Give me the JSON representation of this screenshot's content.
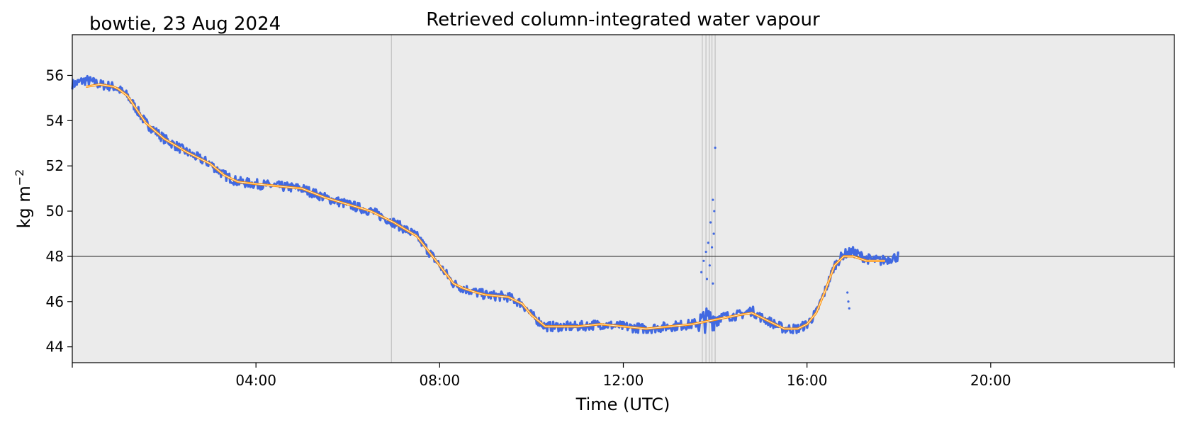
{
  "chart_data": {
    "type": "line",
    "title": "Retrieved column-integrated water vapour",
    "subtitle": "bowtie, 23 Aug 2024",
    "xlabel": "Time (UTC)",
    "ylabel_main": "kg m",
    "ylabel_exp": "−2",
    "xlim_hours": [
      0,
      24
    ],
    "ylim": [
      43.3,
      57.8
    ],
    "x_ticks": [
      {
        "hour": 0,
        "label": ""
      },
      {
        "hour": 4,
        "label": "04:00"
      },
      {
        "hour": 8,
        "label": "08:00"
      },
      {
        "hour": 12,
        "label": "12:00"
      },
      {
        "hour": 16,
        "label": "16:00"
      },
      {
        "hour": 20,
        "label": "20:00"
      },
      {
        "hour": 24,
        "label": ""
      }
    ],
    "y_ticks": [
      44,
      46,
      48,
      50,
      52,
      54,
      56
    ],
    "reference_line_y": 48,
    "vertical_markers_hours": [
      6.95,
      13.72,
      13.8,
      13.87,
      13.93,
      14.0
    ],
    "grid": false,
    "background_color": "#ebebeb",
    "series": [
      {
        "role": "raw",
        "color": "#4169e1",
        "noise": 0.22,
        "x": [
          0.0,
          0.3,
          0.6,
          0.9,
          1.0,
          1.2,
          1.4,
          1.6,
          2.0,
          2.5,
          3.0,
          3.3,
          3.6,
          4.0,
          4.5,
          5.0,
          5.5,
          6.0,
          6.5,
          7.0,
          7.5,
          8.0,
          8.3,
          8.5,
          8.8,
          9.0,
          9.5,
          9.8,
          10.0,
          10.3,
          10.5,
          11.0,
          11.5,
          12.0,
          12.5,
          13.0,
          13.5,
          14.0,
          14.5,
          14.8,
          15.0,
          15.3,
          15.5,
          15.8,
          16.0,
          16.2,
          16.4,
          16.6,
          16.8,
          17.0,
          17.3,
          17.6,
          18.0
        ],
        "y": [
          55.6,
          55.8,
          55.6,
          55.5,
          55.4,
          55.1,
          54.5,
          53.9,
          53.2,
          52.6,
          52.1,
          51.6,
          51.3,
          51.2,
          51.1,
          51.0,
          50.6,
          50.3,
          50.0,
          49.5,
          48.9,
          47.6,
          46.8,
          46.6,
          46.4,
          46.3,
          46.2,
          45.9,
          45.4,
          44.9,
          44.9,
          44.9,
          45.0,
          44.9,
          44.8,
          44.9,
          45.0,
          45.3,
          45.4,
          45.6,
          45.3,
          45.0,
          44.8,
          44.8,
          45.0,
          45.5,
          46.5,
          47.6,
          48.1,
          48.2,
          47.9,
          47.8,
          48.0
        ]
      },
      {
        "role": "smoothed",
        "color": "#ff8c00",
        "x": [
          0.3,
          0.6,
          0.9,
          1.0,
          1.2,
          1.4,
          1.6,
          2.0,
          2.5,
          3.0,
          3.3,
          3.6,
          4.0,
          4.5,
          5.0,
          5.5,
          6.0,
          6.5,
          7.0,
          7.5,
          8.0,
          8.3,
          8.5,
          8.8,
          9.0,
          9.5,
          9.8,
          10.0,
          10.3,
          10.5,
          11.0,
          11.5,
          12.0,
          12.5,
          13.0,
          13.5,
          14.0,
          14.5,
          14.8,
          15.0,
          15.3,
          15.5,
          15.8,
          16.0,
          16.2,
          16.4,
          16.6,
          16.8,
          17.0,
          17.3,
          17.7
        ],
        "y": [
          55.5,
          55.6,
          55.5,
          55.4,
          55.1,
          54.5,
          53.9,
          53.2,
          52.6,
          52.1,
          51.6,
          51.3,
          51.2,
          51.1,
          51.0,
          50.6,
          50.3,
          50.0,
          49.5,
          48.9,
          47.6,
          46.8,
          46.6,
          46.4,
          46.3,
          46.2,
          45.9,
          45.4,
          44.9,
          44.9,
          44.9,
          45.0,
          44.9,
          44.8,
          44.9,
          45.0,
          45.2,
          45.4,
          45.5,
          45.3,
          45.0,
          44.8,
          44.8,
          45.0,
          45.5,
          46.5,
          47.6,
          48.0,
          48.0,
          47.8,
          47.8
        ]
      }
    ],
    "outlier_points": [
      {
        "x": 14.0,
        "y": 52.8
      },
      {
        "x": 13.95,
        "y": 50.5
      },
      {
        "x": 13.98,
        "y": 50.0
      },
      {
        "x": 13.9,
        "y": 49.5
      },
      {
        "x": 13.97,
        "y": 49.0
      },
      {
        "x": 13.85,
        "y": 48.6
      },
      {
        "x": 13.8,
        "y": 48.2
      },
      {
        "x": 13.93,
        "y": 48.4
      },
      {
        "x": 13.75,
        "y": 47.8
      },
      {
        "x": 13.88,
        "y": 47.6
      },
      {
        "x": 13.7,
        "y": 47.3
      },
      {
        "x": 13.82,
        "y": 47.0
      },
      {
        "x": 13.95,
        "y": 46.8
      },
      {
        "x": 16.9,
        "y": 46.0
      },
      {
        "x": 16.92,
        "y": 45.7
      },
      {
        "x": 16.88,
        "y": 46.4
      }
    ]
  }
}
